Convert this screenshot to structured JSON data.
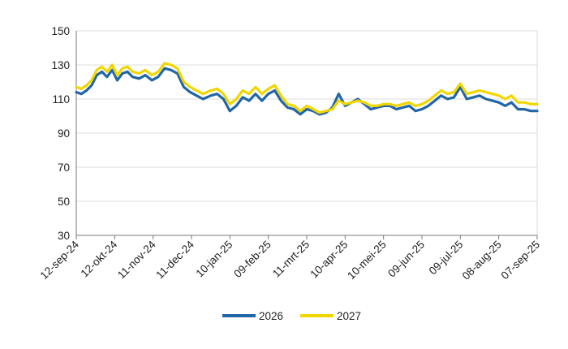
{
  "chart_data": {
    "type": "line",
    "title": "",
    "xlabel": "",
    "ylabel": "",
    "ylim": [
      30,
      150
    ],
    "yticks": [
      30,
      50,
      70,
      90,
      110,
      130,
      150
    ],
    "xlim": [
      "12-sep-24",
      "07-sep-25"
    ],
    "x_tick_labels": [
      "12-sep-24",
      "12-okt-24",
      "11-nov-24",
      "11-dec-24",
      "10-jan-25",
      "09-feb-25",
      "11-mrt-25",
      "10-apr-25",
      "10-mei-25",
      "09-jun-25",
      "09-jul-25",
      "08-aug-25",
      "07-sep-25"
    ],
    "grid": "horizontal",
    "legend": "bottom-center",
    "series": [
      {
        "name": "2026",
        "color": "#2166a6",
        "points": [
          [
            "12-sep-24",
            114
          ],
          [
            "16-sep-24",
            113
          ],
          [
            "20-sep-24",
            115
          ],
          [
            "24-sep-24",
            118
          ],
          [
            "28-sep-24",
            124
          ],
          [
            "02-okt-24",
            126
          ],
          [
            "06-okt-24",
            123
          ],
          [
            "10-okt-24",
            127
          ],
          [
            "14-okt-24",
            121
          ],
          [
            "18-okt-24",
            125
          ],
          [
            "22-okt-24",
            126
          ],
          [
            "26-okt-24",
            123
          ],
          [
            "31-okt-24",
            122
          ],
          [
            "05-nov-24",
            124
          ],
          [
            "10-nov-24",
            121
          ],
          [
            "15-nov-24",
            123
          ],
          [
            "20-nov-24",
            128
          ],
          [
            "25-nov-24",
            127
          ],
          [
            "30-nov-24",
            125
          ],
          [
            "05-dec-24",
            117
          ],
          [
            "10-dec-24",
            114
          ],
          [
            "15-dec-24",
            112
          ],
          [
            "20-dec-24",
            110
          ],
          [
            "26-dec-24",
            112
          ],
          [
            "31-dec-24",
            113
          ],
          [
            "05-jan-25",
            110
          ],
          [
            "10-jan-25",
            103
          ],
          [
            "15-jan-25",
            106
          ],
          [
            "20-jan-25",
            111
          ],
          [
            "25-jan-25",
            109
          ],
          [
            "30-jan-25",
            113
          ],
          [
            "04-feb-25",
            109
          ],
          [
            "09-feb-25",
            113
          ],
          [
            "14-feb-25",
            115
          ],
          [
            "19-feb-25",
            109
          ],
          [
            "24-feb-25",
            105
          ],
          [
            "01-mrt-25",
            104
          ],
          [
            "06-mrt-25",
            101
          ],
          [
            "11-mrt-25",
            104
          ],
          [
            "16-mrt-25",
            103
          ],
          [
            "21-mrt-25",
            101
          ],
          [
            "26-mrt-25",
            102
          ],
          [
            "31-mrt-25",
            105
          ],
          [
            "05-apr-25",
            113
          ],
          [
            "10-apr-25",
            106
          ],
          [
            "15-apr-25",
            108
          ],
          [
            "20-apr-25",
            110
          ],
          [
            "25-apr-25",
            107
          ],
          [
            "30-apr-25",
            104
          ],
          [
            "05-mei-25",
            105
          ],
          [
            "10-mei-25",
            106
          ],
          [
            "15-mei-25",
            106
          ],
          [
            "20-mei-25",
            104
          ],
          [
            "25-mei-25",
            105
          ],
          [
            "30-mei-25",
            106
          ],
          [
            "04-jun-25",
            103
          ],
          [
            "09-jun-25",
            104
          ],
          [
            "14-jun-25",
            106
          ],
          [
            "19-jun-25",
            109
          ],
          [
            "24-jun-25",
            112
          ],
          [
            "29-jun-25",
            110
          ],
          [
            "04-jul-25",
            111
          ],
          [
            "09-jul-25",
            117
          ],
          [
            "14-jul-25",
            110
          ],
          [
            "19-jul-25",
            111
          ],
          [
            "24-jul-25",
            112
          ],
          [
            "29-jul-25",
            110
          ],
          [
            "03-aug-25",
            109
          ],
          [
            "08-aug-25",
            108
          ],
          [
            "13-aug-25",
            106
          ],
          [
            "18-aug-25",
            108
          ],
          [
            "23-aug-25",
            104
          ],
          [
            "28-aug-25",
            104
          ],
          [
            "02-sep-25",
            103
          ],
          [
            "07-sep-25",
            103
          ]
        ]
      },
      {
        "name": "2027",
        "color": "#f2d600",
        "points": [
          [
            "12-sep-24",
            117
          ],
          [
            "16-sep-24",
            116
          ],
          [
            "20-sep-24",
            118
          ],
          [
            "24-sep-24",
            121
          ],
          [
            "28-sep-24",
            127
          ],
          [
            "02-okt-24",
            129
          ],
          [
            "06-okt-24",
            126
          ],
          [
            "10-okt-24",
            130
          ],
          [
            "14-okt-24",
            124
          ],
          [
            "18-okt-24",
            128
          ],
          [
            "22-okt-24",
            129
          ],
          [
            "26-okt-24",
            126
          ],
          [
            "31-okt-24",
            125
          ],
          [
            "05-nov-24",
            127
          ],
          [
            "10-nov-24",
            124
          ],
          [
            "15-nov-24",
            126
          ],
          [
            "20-nov-24",
            131
          ],
          [
            "25-nov-24",
            130
          ],
          [
            "30-nov-24",
            128
          ],
          [
            "05-dec-24",
            120
          ],
          [
            "10-dec-24",
            117
          ],
          [
            "15-dec-24",
            115
          ],
          [
            "20-dec-24",
            113
          ],
          [
            "26-dec-24",
            115
          ],
          [
            "31-dec-24",
            116
          ],
          [
            "05-jan-25",
            113
          ],
          [
            "10-jan-25",
            107
          ],
          [
            "15-jan-25",
            110
          ],
          [
            "20-jan-25",
            115
          ],
          [
            "25-jan-25",
            113
          ],
          [
            "30-jan-25",
            117
          ],
          [
            "04-feb-25",
            113
          ],
          [
            "09-feb-25",
            116
          ],
          [
            "14-feb-25",
            118
          ],
          [
            "19-feb-25",
            112
          ],
          [
            "24-feb-25",
            107
          ],
          [
            "01-mrt-25",
            106
          ],
          [
            "06-mrt-25",
            103
          ],
          [
            "11-mrt-25",
            106
          ],
          [
            "16-mrt-25",
            104
          ],
          [
            "21-mrt-25",
            102
          ],
          [
            "26-mrt-25",
            103
          ],
          [
            "31-mrt-25",
            104
          ],
          [
            "05-apr-25",
            109
          ],
          [
            "10-apr-25",
            107
          ],
          [
            "15-apr-25",
            108
          ],
          [
            "20-apr-25",
            109
          ],
          [
            "25-apr-25",
            108
          ],
          [
            "30-apr-25",
            106
          ],
          [
            "05-mei-25",
            106
          ],
          [
            "10-mei-25",
            107
          ],
          [
            "15-mei-25",
            107
          ],
          [
            "20-mei-25",
            106
          ],
          [
            "25-mei-25",
            107
          ],
          [
            "30-mei-25",
            108
          ],
          [
            "04-jun-25",
            106
          ],
          [
            "09-jun-25",
            107
          ],
          [
            "14-jun-25",
            109
          ],
          [
            "19-jun-25",
            112
          ],
          [
            "24-jun-25",
            115
          ],
          [
            "29-jun-25",
            113
          ],
          [
            "04-jul-25",
            114
          ],
          [
            "09-jul-25",
            119
          ],
          [
            "14-jul-25",
            113
          ],
          [
            "19-jul-25",
            114
          ],
          [
            "24-jul-25",
            115
          ],
          [
            "29-jul-25",
            114
          ],
          [
            "03-aug-25",
            113
          ],
          [
            "08-aug-25",
            112
          ],
          [
            "13-aug-25",
            110
          ],
          [
            "18-aug-25",
            112
          ],
          [
            "23-aug-25",
            108
          ],
          [
            "28-aug-25",
            108
          ],
          [
            "02-sep-25",
            107
          ],
          [
            "07-sep-25",
            107
          ]
        ]
      }
    ]
  }
}
